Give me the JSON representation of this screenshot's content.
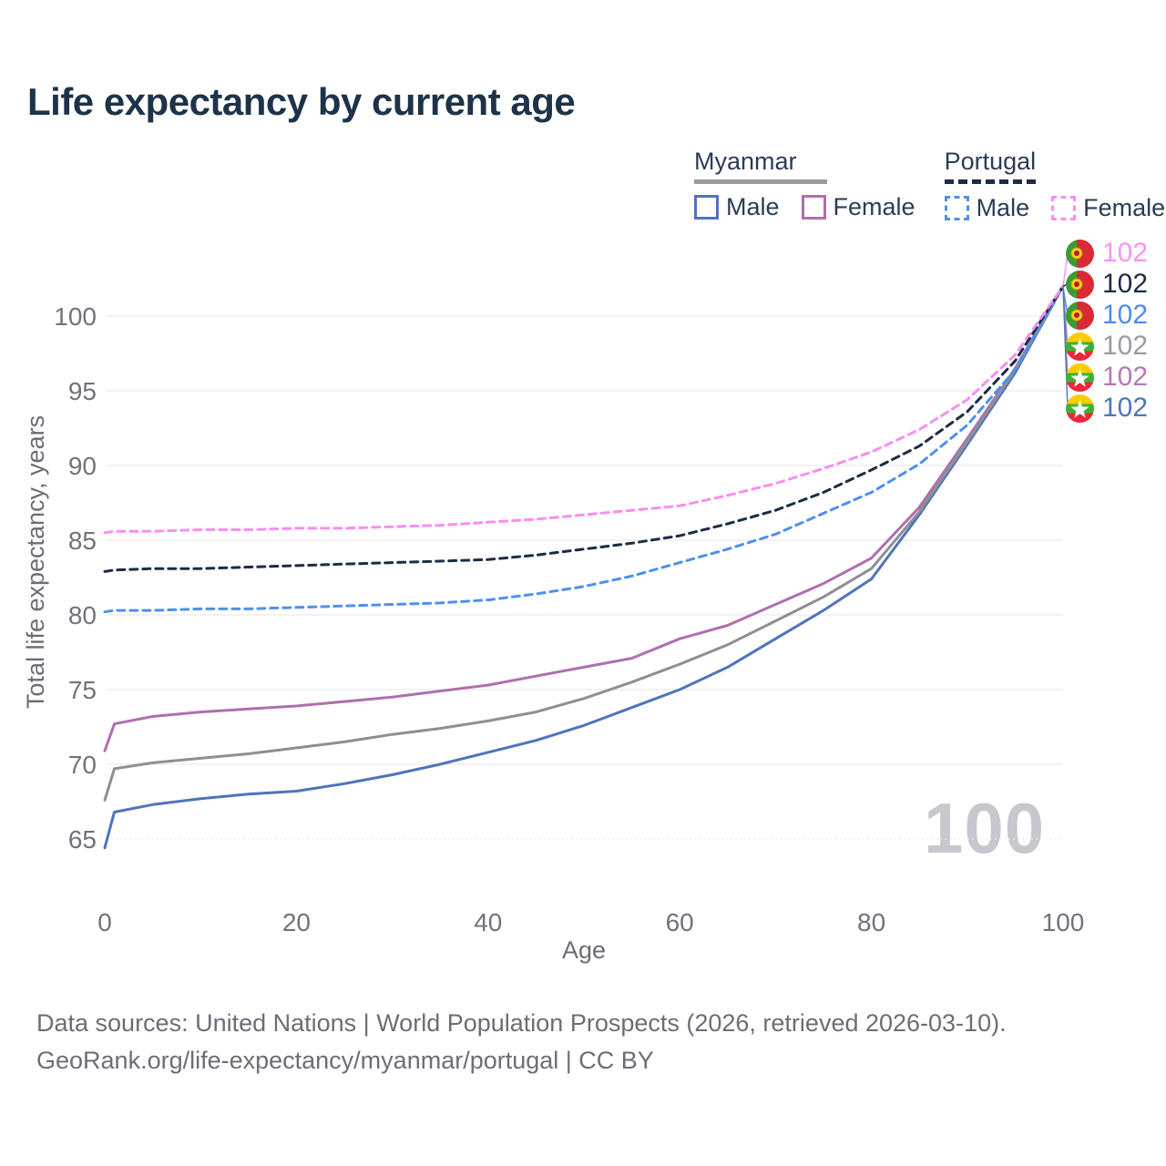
{
  "title": "Life expectancy by current age",
  "legend": {
    "groups": [
      {
        "name": "Myanmar",
        "line_style": "solid",
        "items": [
          {
            "label": "Male",
            "series": "myanmar_male"
          },
          {
            "label": "Female",
            "series": "myanmar_female"
          }
        ]
      },
      {
        "name": "Portugal",
        "line_style": "dashed",
        "items": [
          {
            "label": "Male",
            "series": "portugal_male"
          },
          {
            "label": "Female",
            "series": "portugal_female"
          }
        ]
      }
    ]
  },
  "footer": {
    "line1": "Data sources: United Nations | World Population Prospects (2026, retrieved 2026-03-10).",
    "line2": "GeoRank.org/life-expectancy/myanmar/portugal | CC BY"
  },
  "colors": {
    "title": "#1d3349",
    "legend_text": "#2c3c55",
    "tick_text": "#72727c",
    "axis_title_text": "#6c6c76",
    "footer_text": "#6d6d78",
    "gridline": "#e9e9ed",
    "watermark": "#c7c7cd",
    "myanmar_underline": "#9b9ba1",
    "portugal_underline": "#1b2c45"
  },
  "chart_data": {
    "type": "line",
    "title": "Life expectancy by current age",
    "xlabel": "Age",
    "ylabel": "Total life expectancy, years",
    "xlim": [
      0,
      100
    ],
    "ylim": [
      64,
      102
    ],
    "xticks": [
      0,
      20,
      40,
      60,
      80,
      100
    ],
    "yticks": [
      65,
      70,
      75,
      80,
      85,
      90,
      95,
      100
    ],
    "grid": "horizontal-only",
    "legend_position": "top-right",
    "watermark": "100",
    "ages": [
      0,
      1,
      5,
      10,
      15,
      20,
      25,
      30,
      35,
      40,
      45,
      50,
      55,
      60,
      65,
      70,
      75,
      80,
      85,
      90,
      95,
      100
    ],
    "series": [
      {
        "id": "portugal_female",
        "name": "Portugal Female",
        "color": "#f88ef0",
        "label_color": "#f795ee",
        "dashed": true,
        "flag": "portugal",
        "end_label": "102",
        "values": [
          85.5,
          85.6,
          85.6,
          85.7,
          85.7,
          85.8,
          85.8,
          85.9,
          86.0,
          86.2,
          86.4,
          86.7,
          87.0,
          87.3,
          88.0,
          88.8,
          89.8,
          90.9,
          92.4,
          94.4,
          97.4,
          102
        ]
      },
      {
        "id": "portugal_both",
        "name": "Portugal",
        "color": "#1b2c45",
        "label_color": "#1b2c45",
        "dashed": true,
        "flag": "portugal",
        "end_label": "102",
        "values": [
          82.9,
          83.0,
          83.1,
          83.1,
          83.2,
          83.3,
          83.4,
          83.5,
          83.6,
          83.7,
          84.0,
          84.4,
          84.8,
          85.3,
          86.1,
          87.0,
          88.2,
          89.7,
          91.3,
          93.6,
          97.0,
          102
        ]
      },
      {
        "id": "portugal_male",
        "name": "Portugal Male",
        "color": "#4e90ee",
        "label_color": "#4b8df0",
        "dashed": true,
        "flag": "portugal",
        "end_label": "102",
        "values": [
          80.2,
          80.3,
          80.3,
          80.4,
          80.4,
          80.5,
          80.6,
          80.7,
          80.8,
          81.0,
          81.4,
          81.9,
          82.6,
          83.5,
          84.4,
          85.4,
          86.8,
          88.2,
          90.1,
          92.7,
          96.4,
          102
        ]
      },
      {
        "id": "myanmar_both",
        "name": "Myanmar",
        "color": "#8f8f93",
        "label_color": "#9a9aa2",
        "dashed": false,
        "flag": "myanmar",
        "end_label": "102",
        "values": [
          67.6,
          69.7,
          70.1,
          70.4,
          70.7,
          71.1,
          71.5,
          72.0,
          72.4,
          72.9,
          73.5,
          74.4,
          75.5,
          76.7,
          78.0,
          79.6,
          81.2,
          83.1,
          86.9,
          91.6,
          96.4,
          102
        ]
      },
      {
        "id": "myanmar_female",
        "name": "Myanmar Female",
        "color": "#b06fad",
        "label_color": "#b37ab3",
        "dashed": false,
        "flag": "myanmar",
        "end_label": "102",
        "values": [
          70.9,
          72.7,
          73.2,
          73.5,
          73.7,
          73.9,
          74.2,
          74.5,
          74.9,
          75.3,
          75.9,
          76.5,
          77.1,
          78.4,
          79.3,
          80.7,
          82.1,
          83.8,
          87.2,
          91.8,
          96.5,
          102
        ]
      },
      {
        "id": "myanmar_male",
        "name": "Myanmar Male",
        "color": "#4f74ba",
        "label_color": "#4f74ba",
        "dashed": false,
        "flag": "myanmar",
        "end_label": "102",
        "values": [
          64.4,
          66.8,
          67.3,
          67.7,
          68.0,
          68.2,
          68.7,
          69.3,
          70.0,
          70.8,
          71.6,
          72.6,
          73.8,
          75.0,
          76.5,
          78.4,
          80.3,
          82.4,
          86.7,
          91.4,
          96.2,
          102
        ]
      }
    ]
  }
}
